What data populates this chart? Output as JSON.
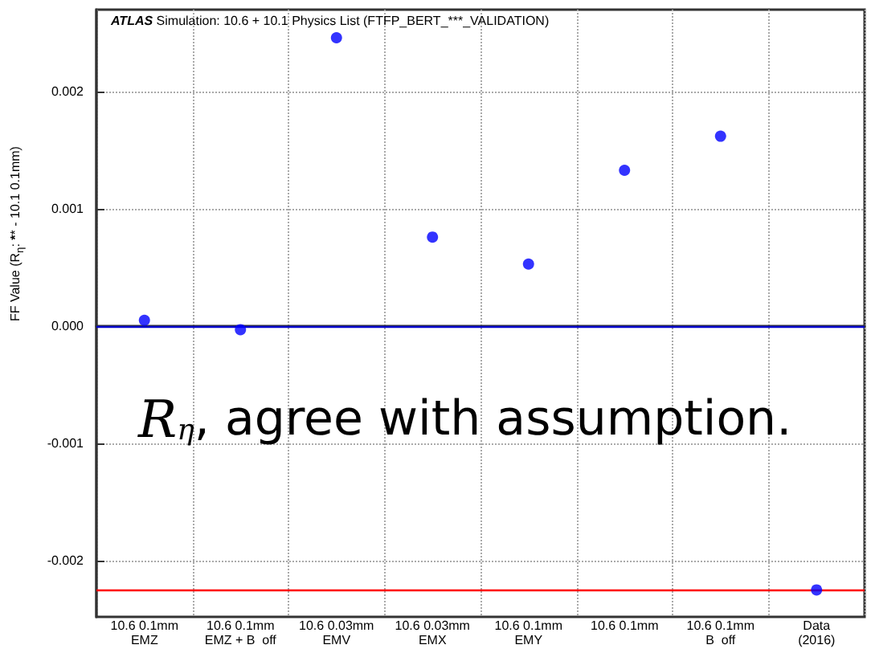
{
  "chart_data": {
    "type": "scatter",
    "title": "ATLAS",
    "subtitle": "Simulation: 10.6 + 10.1 Physics List (FTFP_BERT_***_VALIDATION)",
    "ylabel": "FF Value  (R$_{η}$: ****** - 10.1 0.1mm)",
    "categories": [
      "10.6 0.1mm\nEMZ",
      "10.6 0.1mm\nEMZ + B  off",
      "10.6 0.03mm\nEMV",
      "10.6 0.03mm\nEMX",
      "10.6 0.1mm\nEMY",
      "10.6 0.1mm",
      "10.6 0.1mm\nB  off",
      "Data\n(2016)"
    ],
    "series": [
      {
        "color": "#0000ff",
        "values": [
          5e-05,
          -3e-05,
          0.00246,
          0.00076,
          0.00053,
          0.00133,
          0.00162,
          -0.00225
        ]
      }
    ],
    "ylim": [
      -0.00248,
      0.0027
    ],
    "yticks": [
      {
        "value": -0.002,
        "label": "-0.002"
      },
      {
        "value": -0.001,
        "label": "-0.001"
      },
      {
        "value": 0,
        "label": "0.000"
      },
      0.001,
      0.002
    ],
    "ref_lines": [
      {
        "axis": "y",
        "value": 0,
        "color": "#0000cc"
      },
      {
        "axis": "y",
        "value": -0.00225,
        "color": "#ff0000"
      }
    ],
    "annotations": [
      "R$_{η}$, agree with assumption."
    ],
    "grid": true,
    "marker": "circle"
  }
}
